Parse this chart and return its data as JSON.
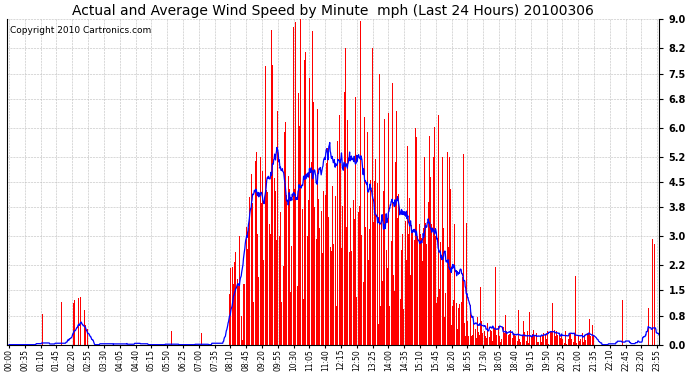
{
  "title": "Actual and Average Wind Speed by Minute  mph (Last 24 Hours) 20100306",
  "copyright": "Copyright 2010 Cartronics.com",
  "yticks": [
    0.0,
    0.8,
    1.5,
    2.2,
    3.0,
    3.8,
    4.5,
    5.2,
    6.0,
    6.8,
    7.5,
    8.2,
    9.0
  ],
  "ymax": 9.0,
  "bar_color": "#FF0000",
  "line_color": "#0000FF",
  "background_color": "#FFFFFF",
  "grid_color": "#BBBBBB",
  "title_fontsize": 10,
  "copyright_fontsize": 6.5,
  "tick_interval": 35
}
